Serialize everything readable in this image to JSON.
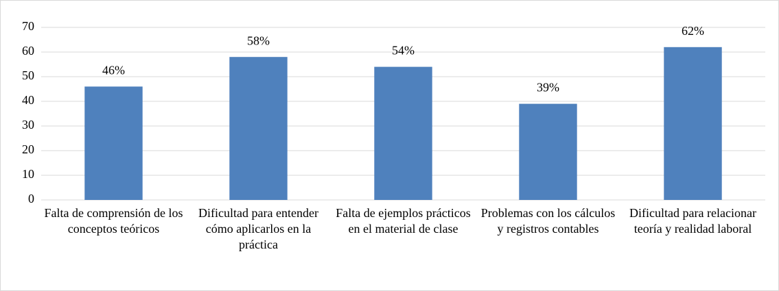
{
  "chart_data": {
    "type": "bar",
    "categories": [
      "Falta de comprensión de los conceptos teóricos",
      "Dificultad para entender cómo aplicarlos en la práctica",
      "Falta de ejemplos prácticos en el material de clase",
      "Problemas con los cálculos y registros contables",
      "Dificultad para relacionar teoría y realidad laboral"
    ],
    "values": [
      46,
      58,
      54,
      39,
      62
    ],
    "value_labels": [
      "46%",
      "58%",
      "54%",
      "39%",
      "62%"
    ],
    "color": "#4f81bd",
    "ylim": [
      0,
      70
    ],
    "yticks": [
      0,
      10,
      20,
      30,
      40,
      50,
      60,
      70
    ],
    "grid": true
  }
}
